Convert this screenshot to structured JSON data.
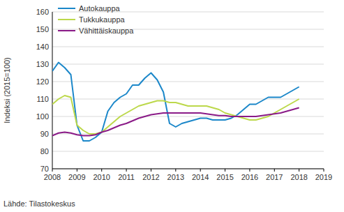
{
  "chart_data": {
    "type": "line",
    "y_label": "Indeksi (2015=100)",
    "source": "Lähde: Tilastokeskus",
    "x": [
      2008,
      2008.25,
      2008.5,
      2008.75,
      2009,
      2009.25,
      2009.5,
      2009.75,
      2010,
      2010.25,
      2010.5,
      2010.75,
      2011,
      2011.25,
      2011.5,
      2011.75,
      2012,
      2012.25,
      2012.5,
      2012.75,
      2013,
      2013.25,
      2013.5,
      2013.75,
      2014,
      2014.25,
      2014.5,
      2014.75,
      2015,
      2015.25,
      2015.5,
      2015.75,
      2016,
      2016.25,
      2016.5,
      2016.75,
      2017,
      2017.25,
      2017.5,
      2017.75,
      2018
    ],
    "series": [
      {
        "name": "Autokauppa",
        "color": "#1b87c9",
        "values": [
          126,
          131,
          128,
          124,
          95,
          86,
          86,
          88,
          91,
          103,
          108,
          111,
          113,
          118,
          118,
          122,
          125,
          121,
          114,
          96,
          94,
          96,
          97,
          98,
          99,
          99,
          98,
          98,
          98,
          99,
          101,
          104,
          107,
          107,
          109,
          111,
          111,
          111,
          113,
          115,
          117
        ]
      },
      {
        "name": "Tukkukauppa",
        "color": "#bcd84a",
        "values": [
          107,
          110,
          112,
          111,
          95,
          92,
          90,
          90,
          91,
          94,
          97,
          100,
          102,
          104,
          106,
          107,
          108,
          109,
          109,
          108,
          108,
          107,
          106,
          106,
          106,
          106,
          105,
          104,
          102,
          101,
          100,
          99,
          98,
          98,
          99,
          100,
          102,
          104,
          106,
          108,
          110
        ]
      },
      {
        "name": "Vähittäiskauppa",
        "color": "#8a1a87",
        "values": [
          89,
          90.5,
          91,
          90.5,
          89.5,
          89,
          89,
          89.5,
          91,
          92,
          93.5,
          95,
          96,
          97.5,
          99,
          100,
          101,
          101.5,
          102,
          102,
          102,
          102,
          102,
          102,
          102,
          101.5,
          101,
          100.5,
          100.5,
          100,
          100,
          100,
          100,
          100,
          100.5,
          101,
          101.5,
          102,
          103,
          104,
          105
        ]
      }
    ],
    "xlim": [
      2008,
      2019
    ],
    "ylim": [
      70,
      160
    ],
    "xticks": [
      2008,
      2009,
      2010,
      2011,
      2012,
      2013,
      2014,
      2015,
      2016,
      2017,
      2018,
      2019
    ],
    "yticks": [
      70,
      80,
      90,
      100,
      110,
      120,
      130,
      140,
      150,
      160
    ],
    "grid": true,
    "legend": "upper left"
  }
}
